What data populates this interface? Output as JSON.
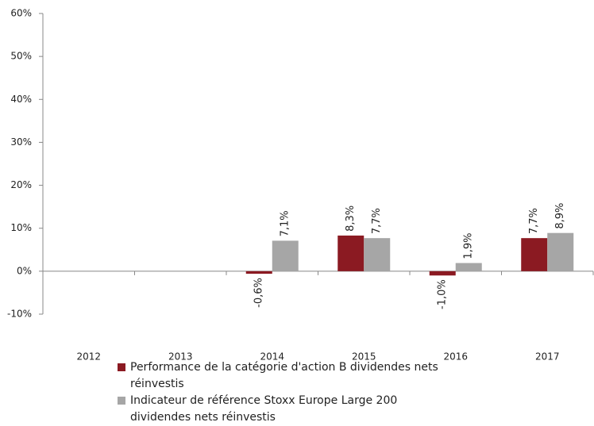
{
  "chart_data": {
    "type": "bar",
    "categories": [
      "2012",
      "2013",
      "2014",
      "2015",
      "2016",
      "2017"
    ],
    "series": [
      {
        "name": "Performance de la catégorie d'action B dividendes nets réinvestis",
        "color": "#8b1a22",
        "values": [
          null,
          null,
          -0.6,
          8.3,
          -1.0,
          7.7
        ],
        "value_labels": [
          null,
          null,
          "-0,6%",
          "8,3%",
          "-1,0%",
          "7,7%"
        ]
      },
      {
        "name": "Indicateur de référence Stoxx Europe Large 200 dividendes nets réinvestis",
        "color": "#a6a6a6",
        "values": [
          null,
          null,
          7.1,
          7.7,
          1.9,
          8.9
        ],
        "value_labels": [
          null,
          null,
          "7,1%",
          "7,7%",
          "1,9%",
          "8,9%"
        ]
      }
    ],
    "ylim": [
      -10,
      60
    ],
    "yticks": [
      {
        "value": -10,
        "label": "-10%"
      },
      {
        "value": 0,
        "label": "0%"
      },
      {
        "value": 10,
        "label": "10%"
      },
      {
        "value": 20,
        "label": "20%"
      },
      {
        "value": 30,
        "label": "30%"
      },
      {
        "value": 40,
        "label": "40%"
      },
      {
        "value": 50,
        "label": "50%"
      },
      {
        "value": 60,
        "label": "60%"
      }
    ],
    "legend": "bottom"
  }
}
